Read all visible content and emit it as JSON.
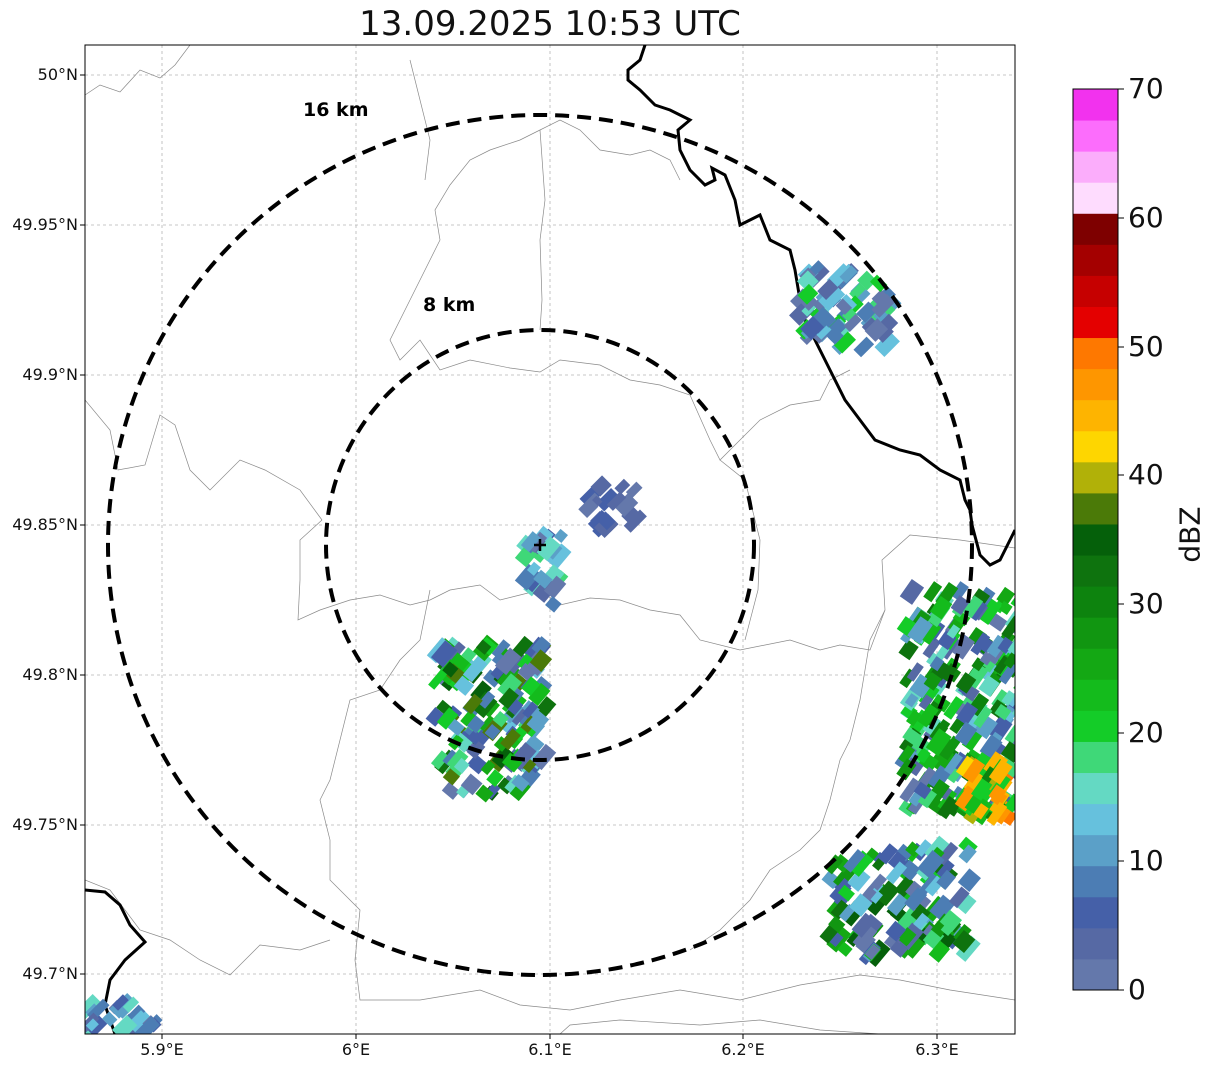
{
  "title": "13.09.2025 10:53 UTC",
  "map": {
    "lon_range": [
      5.86,
      6.34
    ],
    "lat_range": [
      49.68,
      50.01
    ],
    "gridlines": true,
    "lat_ticks": [
      "50°N",
      "49.95°N",
      "49.9°N",
      "49.85°N",
      "49.8°N",
      "49.75°N",
      "49.7°N"
    ],
    "lon_ticks": [
      "5.9°E",
      "6°E",
      "6.1°E",
      "6.2°E",
      "6.3°E"
    ],
    "radar_site": {
      "lon": 6.095,
      "lat": 49.845,
      "marker": "plus"
    },
    "range_rings": [
      {
        "label": "8 km",
        "radius_km": 8
      },
      {
        "label": "16 km",
        "radius_km": 16
      }
    ]
  },
  "colorbar": {
    "label": "dBZ",
    "min": 0,
    "max": 70,
    "ticks": [
      "0",
      "10",
      "20",
      "30",
      "40",
      "50",
      "60",
      "70"
    ],
    "colors": [
      "#6478ab",
      "#5669a4",
      "#4560a8",
      "#4c7db4",
      "#5ba0c8",
      "#66c1dd",
      "#64d9c3",
      "#3fd878",
      "#14cc28",
      "#14bb1c",
      "#14a814",
      "#119611",
      "#0d830e",
      "#0e730e",
      "#05600a",
      "#4b7a08",
      "#b1b108",
      "#fed600",
      "#feb400",
      "#fe9600",
      "#fe7800",
      "#e40000",
      "#c60000",
      "#a40000",
      "#7e0000",
      "#fedcfe",
      "#fbadfb",
      "#fc6dfc",
      "#f232ee"
    ]
  }
}
